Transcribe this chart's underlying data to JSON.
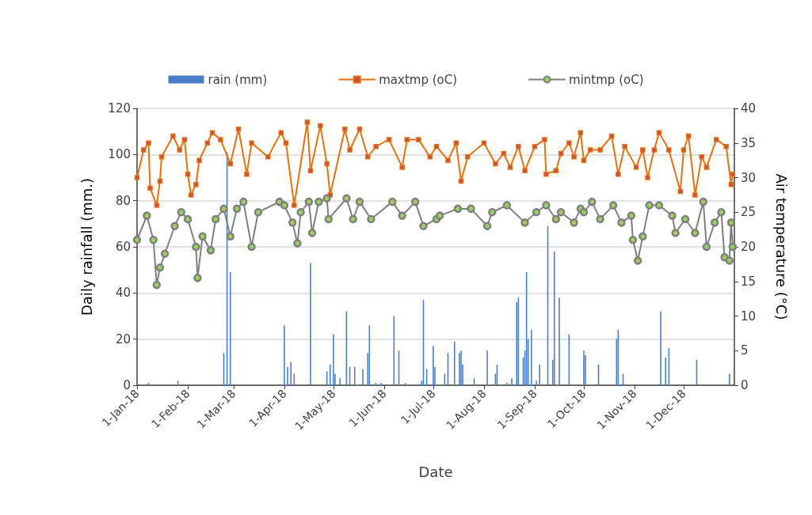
{
  "chart_data": {
    "type": "line",
    "xlabel": "Date",
    "ylabel": "Daily rainfall (mm.)",
    "y2label": "Air temperature (°C)",
    "xlim": [
      "2018-01-01",
      "2019-01-01"
    ],
    "xticks": [
      {
        "value": "2018-01-01",
        "label": "1-Jan-18"
      },
      {
        "value": "2018-02-01",
        "label": "1-Feb-18"
      },
      {
        "value": "2018-03-01",
        "label": "1-Mar-18"
      },
      {
        "value": "2018-04-01",
        "label": "1-Apr-18"
      },
      {
        "value": "2018-05-01",
        "label": "1-May-18"
      },
      {
        "value": "2018-06-01",
        "label": "1-Jun-18"
      },
      {
        "value": "2018-07-01",
        "label": "1-Jul-18"
      },
      {
        "value": "2018-08-01",
        "label": "1-Aug-18"
      },
      {
        "value": "2018-09-01",
        "label": "1-Sep-18"
      },
      {
        "value": "2018-10-01",
        "label": "1-Oct-18"
      },
      {
        "value": "2018-11-01",
        "label": "1-Nov-18"
      },
      {
        "value": "2018-12-01",
        "label": "1-Dec-18"
      }
    ],
    "ylim": [
      0,
      120
    ],
    "yticks": [
      0,
      20,
      40,
      60,
      80,
      100,
      120
    ],
    "y2lim": [
      0,
      40
    ],
    "y2ticks": [
      0,
      5,
      10,
      15,
      20,
      25,
      30,
      35,
      40
    ],
    "grid": "y",
    "legend": "top",
    "series": [
      {
        "name": "rain (mm)",
        "type": "bar",
        "color": "#4a7fc8",
        "x": [
          "2018-01-08",
          "2018-01-26",
          "2018-02-23",
          "2018-02-25",
          "2018-02-27",
          "2018-04-01",
          "2018-04-03",
          "2018-04-05",
          "2018-04-07",
          "2018-04-17",
          "2018-04-27",
          "2018-04-29",
          "2018-05-01",
          "2018-05-02",
          "2018-05-05",
          "2018-05-09",
          "2018-05-11",
          "2018-05-14",
          "2018-05-19",
          "2018-05-22",
          "2018-05-23",
          "2018-05-27",
          "2018-05-30",
          "2018-06-07",
          "2018-06-10",
          "2018-06-14",
          "2018-06-24",
          "2018-06-25",
          "2018-06-27",
          "2018-07-01",
          "2018-07-02",
          "2018-07-08",
          "2018-07-10",
          "2018-07-14",
          "2018-07-17",
          "2018-07-18",
          "2018-07-19",
          "2018-07-26",
          "2018-08-03",
          "2018-08-08",
          "2018-08-09",
          "2018-08-15",
          "2018-08-18",
          "2018-08-21",
          "2018-08-22",
          "2018-08-25",
          "2018-08-26",
          "2018-08-27",
          "2018-08-28",
          "2018-08-30",
          "2018-09-02",
          "2018-09-04",
          "2018-09-09",
          "2018-09-12",
          "2018-09-13",
          "2018-09-16",
          "2018-09-22",
          "2018-10-01",
          "2018-10-02",
          "2018-10-10",
          "2018-10-21",
          "2018-10-22",
          "2018-10-25",
          "2018-11-17",
          "2018-11-20",
          "2018-11-22",
          "2018-12-09",
          "2018-12-29"
        ],
        "values": [
          1,
          2,
          14,
          101,
          49,
          26,
          8,
          10,
          5,
          53,
          6,
          9,
          22,
          5,
          3,
          32,
          8,
          8,
          7,
          14,
          26,
          1,
          1,
          30,
          15,
          1,
          2,
          37,
          7,
          17,
          8,
          5,
          14,
          19,
          14,
          15,
          9,
          3,
          15,
          5,
          9,
          1,
          3,
          36,
          38,
          12,
          15,
          49,
          20,
          24,
          2,
          9,
          69,
          11,
          58,
          38,
          22,
          15,
          13,
          9,
          20,
          24,
          5,
          32,
          12,
          16,
          11,
          5
        ]
      },
      {
        "name": "maxtmp (oC)",
        "axis": "y2",
        "color": "#e8700f",
        "marker": "square",
        "x": [
          "2018-01-01",
          "2018-01-05",
          "2018-01-08",
          "2018-01-09",
          "2018-01-13",
          "2018-01-15",
          "2018-01-16",
          "2018-01-23",
          "2018-01-27",
          "2018-01-30",
          "2018-02-01",
          "2018-02-03",
          "2018-02-06",
          "2018-02-08",
          "2018-02-13",
          "2018-02-16",
          "2018-02-21",
          "2018-02-27",
          "2018-03-04",
          "2018-03-09",
          "2018-03-12",
          "2018-03-22",
          "2018-03-30",
          "2018-04-02",
          "2018-04-07",
          "2018-04-15",
          "2018-04-17",
          "2018-04-23",
          "2018-04-27",
          "2018-04-29",
          "2018-05-08",
          "2018-05-11",
          "2018-05-17",
          "2018-05-22",
          "2018-05-27",
          "2018-06-04",
          "2018-06-12",
          "2018-06-15",
          "2018-06-22",
          "2018-06-29",
          "2018-07-03",
          "2018-07-10",
          "2018-07-15",
          "2018-07-18",
          "2018-07-22",
          "2018-08-01",
          "2018-08-08",
          "2018-08-13",
          "2018-08-17",
          "2018-08-22",
          "2018-08-26",
          "2018-09-01",
          "2018-09-07",
          "2018-09-08",
          "2018-09-14",
          "2018-09-17",
          "2018-09-22",
          "2018-09-25",
          "2018-09-29",
          "2018-10-01",
          "2018-10-05",
          "2018-10-11",
          "2018-10-18",
          "2018-10-22",
          "2018-10-26",
          "2018-11-02",
          "2018-11-06",
          "2018-11-09",
          "2018-11-13",
          "2018-11-16",
          "2018-11-22",
          "2018-11-29",
          "2018-12-01",
          "2018-12-04",
          "2018-12-08",
          "2018-12-12",
          "2018-12-15",
          "2018-12-21",
          "2018-12-27",
          "2018-12-30",
          "2018-12-31"
        ],
        "values": [
          30,
          34,
          35,
          28.5,
          26,
          29.5,
          33,
          36,
          34,
          35.5,
          30.5,
          27.5,
          29,
          32.5,
          35,
          36.5,
          35.5,
          32,
          37,
          30.5,
          35,
          33,
          36.5,
          35,
          26,
          38,
          31,
          37.5,
          32,
          27.5,
          37,
          34,
          37,
          33,
          34.5,
          35.5,
          31.5,
          35.5,
          35.5,
          33,
          34.5,
          32.5,
          35,
          29.5,
          33,
          35,
          32,
          33.5,
          31.5,
          34.5,
          31,
          34.5,
          35.5,
          30.5,
          31,
          33.5,
          35,
          33,
          36.5,
          32.5,
          34,
          34,
          36,
          30.5,
          34.5,
          31.5,
          34,
          30,
          34,
          36.5,
          34,
          28,
          34,
          36,
          27.5,
          33,
          31.5,
          35.5,
          34.5,
          29,
          30.5
        ]
      },
      {
        "name": "mintmp (oC)",
        "axis": "y2",
        "color": "#7f7f7f",
        "marker": "circle",
        "x": [
          "2018-01-01",
          "2018-01-07",
          "2018-01-11",
          "2018-01-13",
          "2018-01-15",
          "2018-01-18",
          "2018-01-24",
          "2018-01-28",
          "2018-02-01",
          "2018-02-06",
          "2018-02-07",
          "2018-02-10",
          "2018-02-15",
          "2018-02-18",
          "2018-02-23",
          "2018-02-27",
          "2018-03-03",
          "2018-03-07",
          "2018-03-12",
          "2018-03-16",
          "2018-03-29",
          "2018-04-01",
          "2018-04-06",
          "2018-04-09",
          "2018-04-11",
          "2018-04-16",
          "2018-04-18",
          "2018-04-22",
          "2018-04-27",
          "2018-04-28",
          "2018-05-09",
          "2018-05-13",
          "2018-05-17",
          "2018-05-24",
          "2018-06-06",
          "2018-06-12",
          "2018-06-20",
          "2018-06-25",
          "2018-07-03",
          "2018-07-05",
          "2018-07-16",
          "2018-07-24",
          "2018-08-03",
          "2018-08-06",
          "2018-08-15",
          "2018-08-26",
          "2018-09-02",
          "2018-09-08",
          "2018-09-14",
          "2018-09-17",
          "2018-09-25",
          "2018-09-29",
          "2018-10-01",
          "2018-10-06",
          "2018-10-11",
          "2018-10-19",
          "2018-10-24",
          "2018-10-30",
          "2018-10-31",
          "2018-11-03",
          "2018-11-06",
          "2018-11-10",
          "2018-11-16",
          "2018-11-24",
          "2018-11-26",
          "2018-12-02",
          "2018-12-08",
          "2018-12-13",
          "2018-12-15",
          "2018-12-20",
          "2018-12-24",
          "2018-12-26",
          "2018-12-29",
          "2018-12-30",
          "2018-12-31"
        ],
        "values": [
          21,
          24.5,
          21,
          14.5,
          17,
          19,
          23,
          25,
          24,
          20,
          15.5,
          21.5,
          19.5,
          24,
          25.5,
          21.5,
          25.5,
          26.5,
          20,
          25,
          26.5,
          26,
          23.5,
          20.5,
          25,
          26.5,
          22,
          26.5,
          27,
          24,
          27,
          24,
          26.5,
          24,
          26.5,
          24.5,
          26.5,
          23,
          24,
          24.5,
          25.5,
          25.5,
          23,
          25,
          26,
          23.5,
          25,
          26,
          24,
          25,
          23.5,
          25.5,
          25,
          26.5,
          24,
          26,
          23.5,
          24.5,
          21,
          18,
          21.5,
          26,
          26,
          24.5,
          22,
          24,
          22,
          26.5,
          20,
          23.5,
          25,
          18.5,
          18,
          23.5,
          20
        ]
      }
    ]
  }
}
